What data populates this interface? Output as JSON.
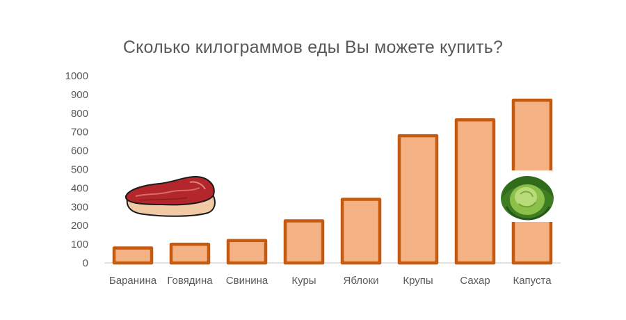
{
  "chart_data": {
    "type": "bar",
    "title": "Сколько килограммов еды Вы можете купить?",
    "categories": [
      "Баранина",
      "Говядина",
      "Свинина",
      "Куры",
      "Яблоки",
      "Крупы",
      "Сахар",
      "Капуста"
    ],
    "values": [
      80,
      100,
      120,
      225,
      340,
      680,
      765,
      870
    ],
    "ylim": [
      0,
      1000
    ],
    "yticks": [
      0,
      100,
      200,
      300,
      400,
      500,
      600,
      700,
      800,
      900,
      1000
    ],
    "grid": false,
    "legend": "none",
    "colors": {
      "bar_fill": "#F4B183",
      "bar_stroke": "#C55A11",
      "axis": "#D9D9D9",
      "text": "#595959"
    },
    "icons": {
      "steak": "steak-icon",
      "cabbage": "cabbage-icon"
    }
  }
}
